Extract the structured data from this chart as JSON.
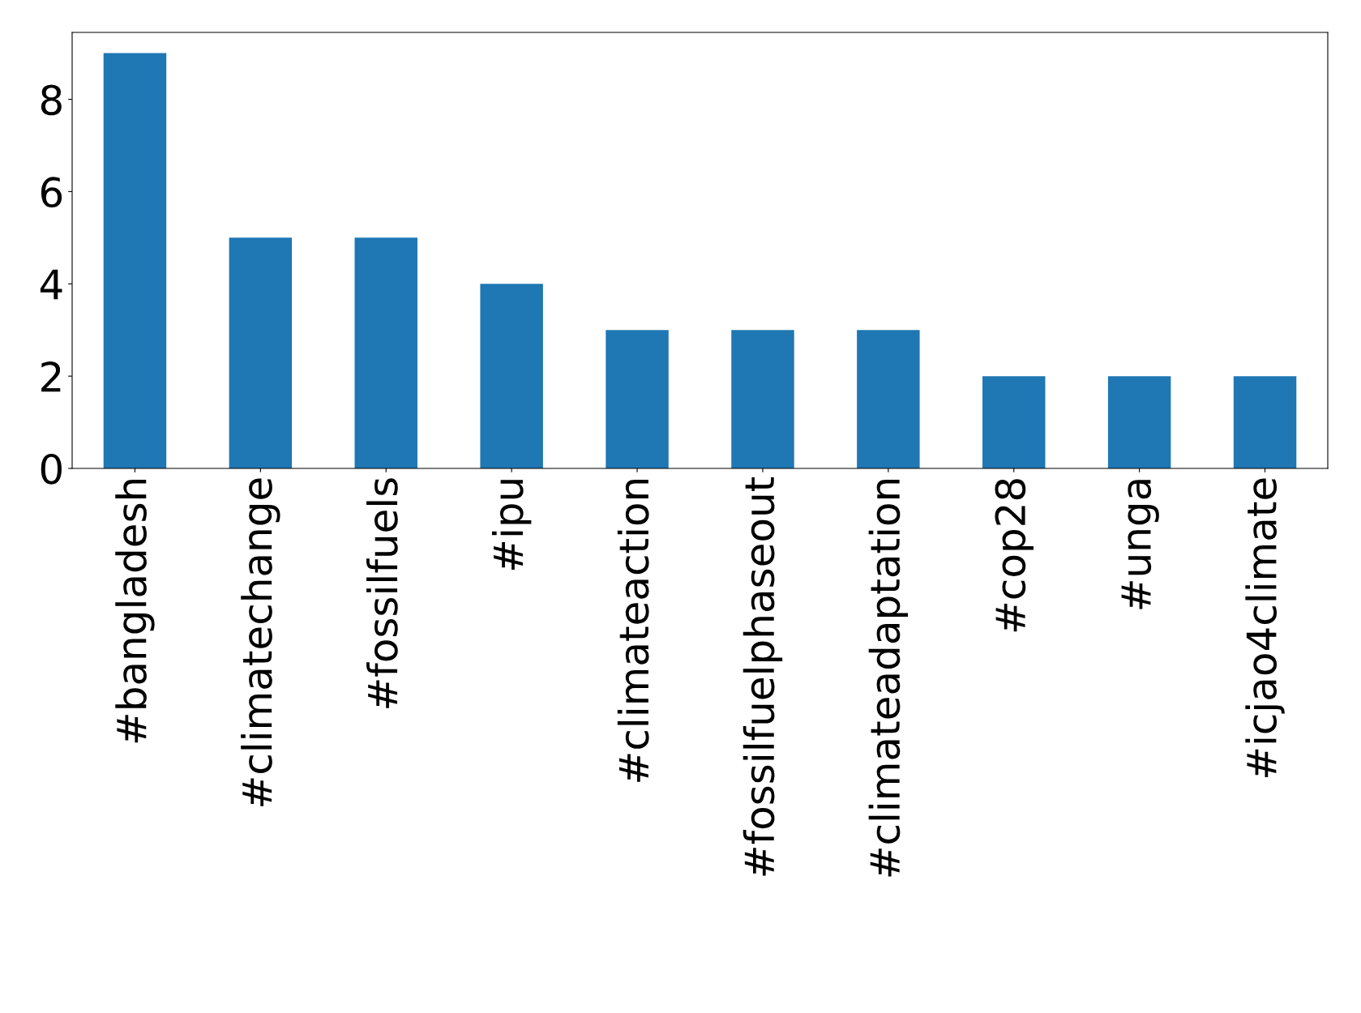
{
  "chart_data": {
    "type": "bar",
    "categories": [
      "#bangladesh",
      "#climatechange",
      "#fossilfuels",
      "#ipu",
      "#climateaction",
      "#fossilfuelphaseout",
      "#climateadaptation",
      "#cop28",
      "#unga",
      "#icjao4climate"
    ],
    "values": [
      9,
      5,
      5,
      4,
      3,
      3,
      3,
      2,
      2,
      2
    ],
    "color": "#1f77b4",
    "ylim": [
      0,
      9.45
    ],
    "yticks": [
      0,
      2,
      4,
      6,
      8
    ],
    "grid": false,
    "legend": false
  }
}
